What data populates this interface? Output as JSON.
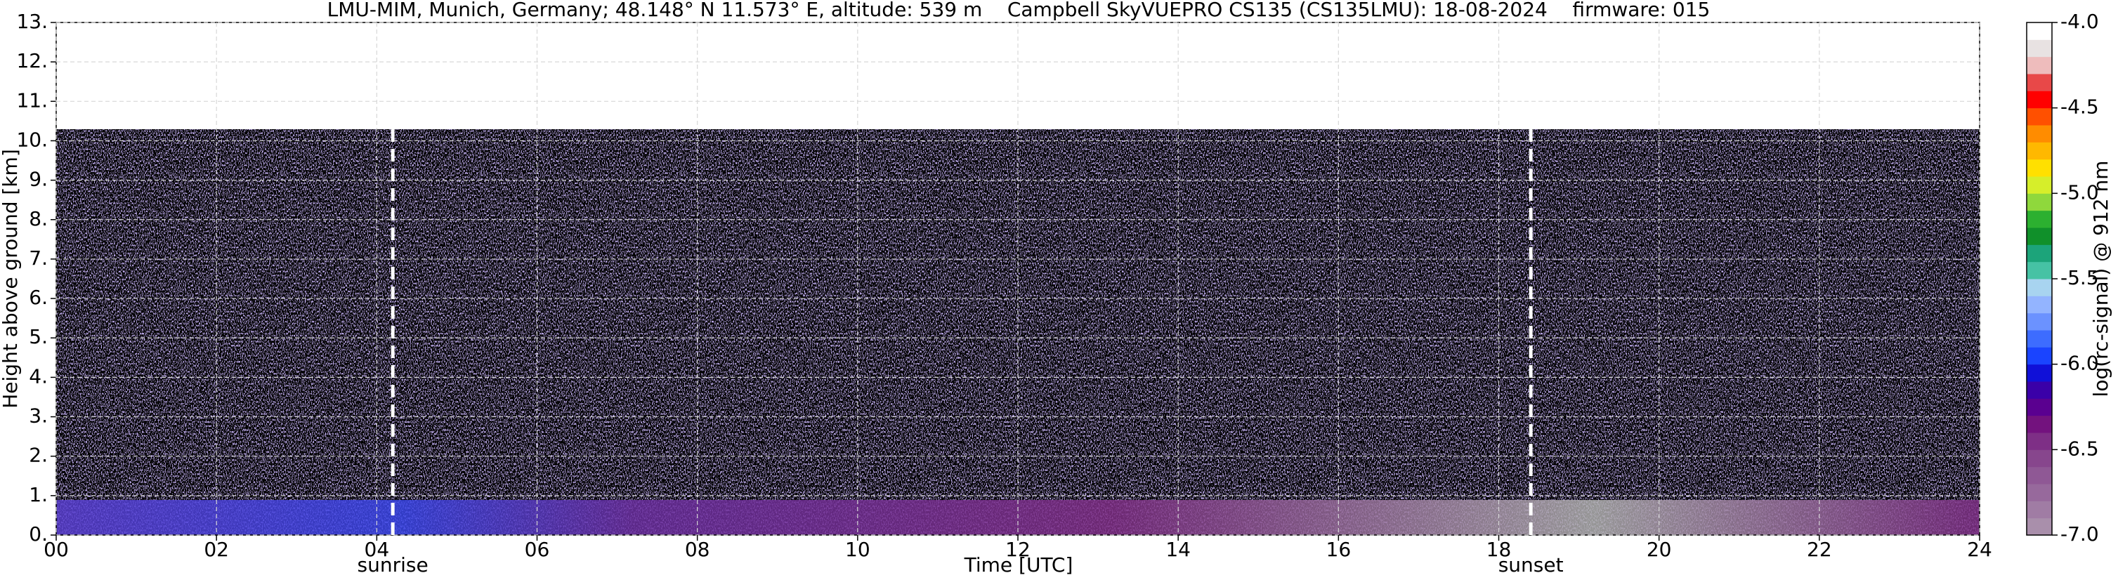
{
  "chart_data": {
    "type": "heatmap",
    "title": "LMU-MIM, Munich, Germany; 48.148° N 11.573° E, altitude: 539 m    Campbell SkyVUEPRO CS135 (CS135LMU): 18-08-2024    firmware: 015",
    "xlabel": "Time [UTC]",
    "ylabel": "Height above ground [km]",
    "xlim": [
      0,
      24
    ],
    "xticks": [
      {
        "value": 0,
        "label": "00"
      },
      {
        "value": 2,
        "label": "02"
      },
      {
        "value": 4,
        "label": "04"
      },
      {
        "value": 6,
        "label": "06"
      },
      {
        "value": 8,
        "label": "08"
      },
      10,
      12,
      14,
      16,
      18,
      20,
      22,
      24
    ],
    "ylim": [
      0,
      13
    ],
    "yticks": [
      {
        "value": 0,
        "label": "0."
      },
      {
        "value": 1,
        "label": "1."
      },
      {
        "value": 2,
        "label": "2."
      },
      {
        "value": 3,
        "label": "3."
      },
      {
        "value": 4,
        "label": "4."
      },
      {
        "value": 5,
        "label": "5."
      },
      {
        "value": 6,
        "label": "6."
      },
      {
        "value": 7,
        "label": "7."
      },
      {
        "value": 8,
        "label": "8."
      },
      {
        "value": 9,
        "label": "9."
      },
      {
        "value": 10,
        "label": "10."
      },
      {
        "value": 11,
        "label": "11."
      },
      {
        "value": 12,
        "label": "12."
      },
      {
        "value": 13,
        "label": "13."
      }
    ],
    "grid": true,
    "annotations": [
      {
        "text": "sunrise",
        "x": 4.2
      },
      {
        "text": "sunset",
        "x": 18.4
      }
    ],
    "colorbar": {
      "label": "log(rc-signal) @ 912 nm",
      "clim": [
        -7,
        -4
      ],
      "ticks": [
        {
          "value": -4,
          "label": "-4.0"
        },
        {
          "value": -4.5,
          "label": "-4.5"
        },
        {
          "value": -5,
          "label": "-5.0"
        },
        {
          "value": -5.5,
          "label": "-5.5"
        },
        {
          "value": -6,
          "label": "-6.0"
        },
        {
          "value": -6.5,
          "label": "-6.5"
        },
        {
          "value": -7,
          "label": "-7.0"
        }
      ],
      "colors": [
        "#a98fab",
        "#a07ca4",
        "#97699c",
        "#8f5895",
        "#87468d",
        "#7e2f86",
        "#73127e",
        "#5a0090",
        "#3a00a8",
        "#1010d8",
        "#1a44ff",
        "#3d6cff",
        "#6b92ff",
        "#93b4ff",
        "#a8d4f0",
        "#46c2a4",
        "#1ca47a",
        "#10902a",
        "#2cb030",
        "#8fd83c",
        "#d6ee2a",
        "#ffe000",
        "#ffb800",
        "#ff8c00",
        "#ff5000",
        "#ff0000",
        "#e84848",
        "#eebcbc",
        "#e8e2e2",
        "#ffffff"
      ]
    }
  }
}
